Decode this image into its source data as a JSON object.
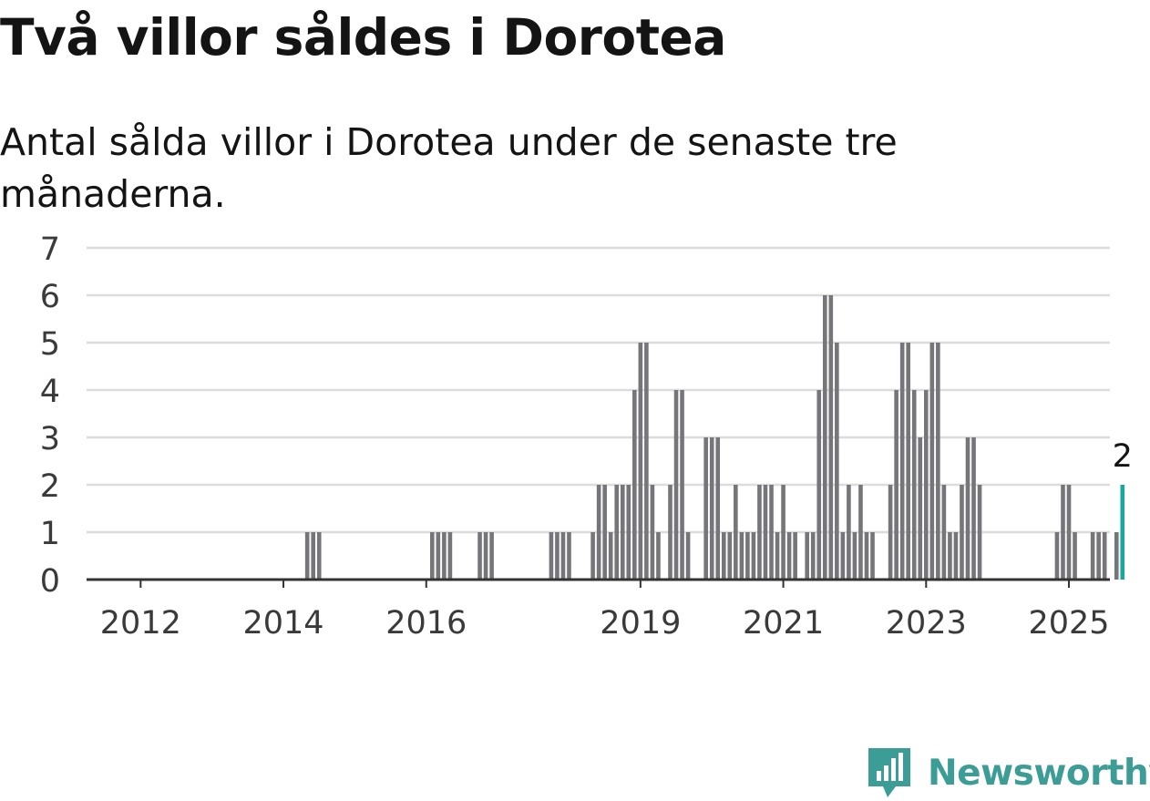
{
  "title": "Två villor såldes i Dorotea",
  "subtitle": "Antal sålda villor i Dorotea under de senaste tre månaderna.",
  "brand": "Newsworthy",
  "colors": {
    "bar": "#75757a",
    "highlight": "#1aa79c",
    "grid": "#dcdcdc",
    "axis": "#333333",
    "brand": "#3c9d97"
  },
  "icons": {
    "logo": "bar-chart-speech-bubble-icon"
  },
  "chart_data": {
    "type": "bar",
    "x_start": "2011-12",
    "x_step_months": 1,
    "x_ticks": [
      "2012",
      "2014",
      "2016",
      "2019",
      "2021",
      "2023",
      "2025"
    ],
    "y_ticks": [
      0,
      1,
      2,
      3,
      4,
      5,
      6,
      7
    ],
    "ylim": [
      0,
      7
    ],
    "grid": true,
    "highlight_last": true,
    "annotation": {
      "label": "2",
      "target": "last"
    },
    "values": [
      0,
      0,
      0,
      0,
      0,
      0,
      0,
      0,
      0,
      0,
      0,
      0,
      0,
      0,
      0,
      0,
      0,
      0,
      0,
      0,
      0,
      0,
      0,
      0,
      0,
      0,
      0,
      0,
      0,
      1,
      1,
      1,
      0,
      0,
      0,
      0,
      0,
      0,
      0,
      0,
      0,
      0,
      0,
      0,
      0,
      0,
      0,
      0,
      0,
      0,
      1,
      1,
      1,
      1,
      0,
      0,
      0,
      0,
      1,
      1,
      1,
      0,
      0,
      0,
      0,
      0,
      0,
      0,
      0,
      0,
      1,
      1,
      1,
      1,
      0,
      0,
      0,
      1,
      2,
      2,
      1,
      2,
      2,
      2,
      4,
      5,
      5,
      2,
      1,
      0,
      2,
      4,
      4,
      1,
      0,
      0,
      3,
      3,
      3,
      1,
      1,
      2,
      1,
      1,
      1,
      2,
      2,
      2,
      1,
      2,
      1,
      1,
      0,
      1,
      1,
      4,
      6,
      6,
      5,
      1,
      2,
      1,
      2,
      1,
      1,
      0,
      0,
      2,
      4,
      5,
      5,
      4,
      3,
      4,
      5,
      5,
      2,
      1,
      1,
      2,
      3,
      3,
      2,
      0,
      0,
      0,
      0,
      0,
      0,
      0,
      0,
      0,
      0,
      0,
      0,
      1,
      2,
      2,
      1,
      0,
      0,
      1,
      1,
      1,
      0,
      1,
      2
    ]
  }
}
